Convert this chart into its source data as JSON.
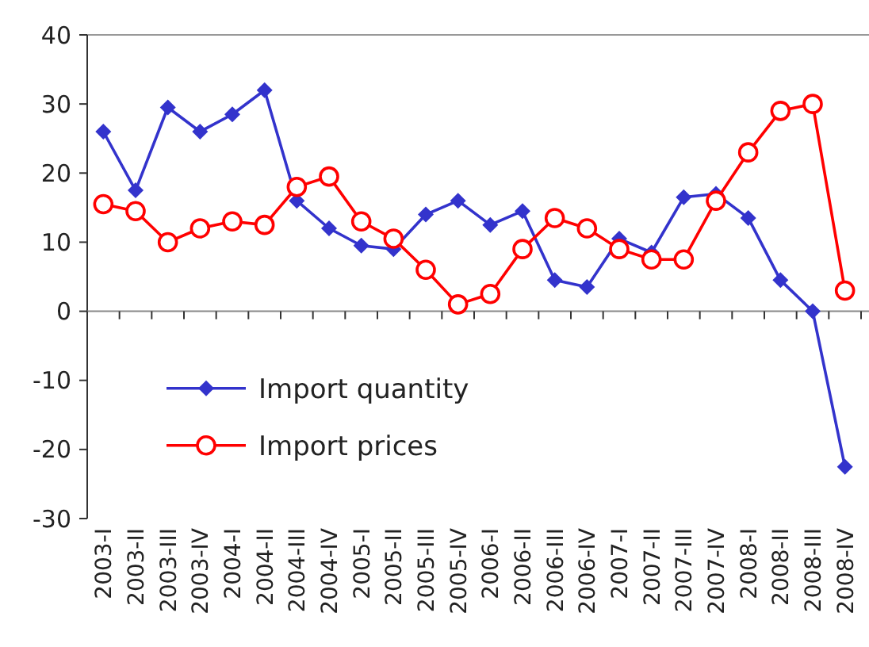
{
  "chart_data": {
    "type": "line",
    "categories": [
      "2003-I",
      "2003-II",
      "2003-III",
      "2003-IV",
      "2004-I",
      "2004-II",
      "2004-III",
      "2004-IV",
      "2005-I",
      "2005-II",
      "2005-III",
      "2005-IV",
      "2006-I",
      "2006-II",
      "2006-III",
      "2006-IV",
      "2007-I",
      "2007-II",
      "2007-III",
      "2007-IV",
      "2008-I",
      "2008-II",
      "2008-III",
      "2008-IV"
    ],
    "series": [
      {
        "name": "Import quantity",
        "color": "#3333cc",
        "marker": "diamond",
        "values": [
          26,
          17.5,
          29.5,
          26,
          28.5,
          32,
          16,
          12,
          9.5,
          9,
          14,
          16,
          12.5,
          14.5,
          4.5,
          3.5,
          10.5,
          8.5,
          16.5,
          17,
          13.5,
          4.5,
          0,
          -22.5
        ]
      },
      {
        "name": "Import prices",
        "color": "#ff0000",
        "marker": "circle",
        "values": [
          15.5,
          14.5,
          10,
          12,
          13,
          12.5,
          18,
          19.5,
          13,
          10.5,
          6,
          1,
          2.5,
          9,
          13.5,
          12,
          9,
          7.5,
          7.5,
          16,
          23,
          29,
          30,
          3
        ]
      }
    ],
    "ylim": [
      -30,
      40
    ],
    "yticks": [
      -30,
      -20,
      -10,
      0,
      10,
      20,
      30,
      40
    ],
    "legend": "bottom left",
    "line_style": "solid"
  }
}
